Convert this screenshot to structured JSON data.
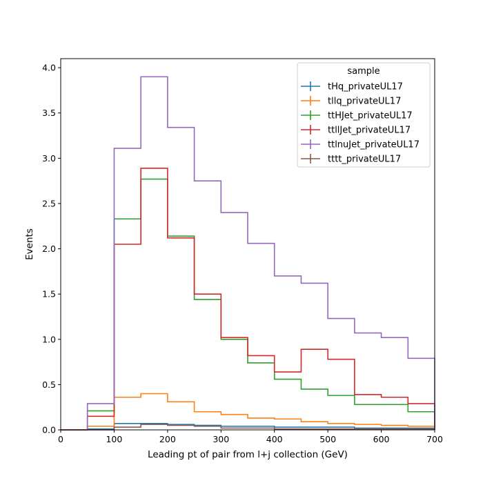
{
  "chart_data": {
    "type": "line",
    "style": "step histogram",
    "xlabel": "Leading pt of pair from l+j collection (GeV)",
    "ylabel": "Events",
    "xlim": [
      0,
      700
    ],
    "ylim": [
      0,
      4.1
    ],
    "x_ticks": [
      "0",
      "100",
      "200",
      "300",
      "400",
      "500",
      "600",
      "700"
    ],
    "y_ticks": [
      "0.0",
      "0.5",
      "1.0",
      "1.5",
      "2.0",
      "2.5",
      "3.0",
      "3.5",
      "4.0"
    ],
    "grid": false,
    "legend_title": "sample",
    "legend_position": "top-right",
    "bin_edges": [
      0,
      50,
      100,
      150,
      200,
      250,
      300,
      350,
      400,
      450,
      500,
      550,
      600,
      650,
      700
    ],
    "series": [
      {
        "name": "tHq_privateUL17",
        "color": "#1f77b4",
        "values": [
          0,
          0.01,
          0.07,
          0.07,
          0.06,
          0.05,
          0.04,
          0.04,
          0.03,
          0.03,
          0.03,
          0.02,
          0.02,
          0.02
        ]
      },
      {
        "name": "tllq_privateUL17",
        "color": "#ff7f0e",
        "values": [
          0,
          0.04,
          0.36,
          0.4,
          0.31,
          0.2,
          0.17,
          0.13,
          0.12,
          0.09,
          0.07,
          0.06,
          0.05,
          0.04
        ]
      },
      {
        "name": "ttHJet_privateUL17",
        "color": "#2ca02c",
        "values": [
          0,
          0.21,
          2.33,
          2.77,
          2.14,
          1.44,
          1.0,
          0.74,
          0.56,
          0.45,
          0.38,
          0.28,
          0.28,
          0.2
        ]
      },
      {
        "name": "ttllJet_privateUL17",
        "color": "#d62728",
        "values": [
          0,
          0.15,
          2.05,
          2.89,
          2.12,
          1.5,
          1.02,
          0.82,
          0.64,
          0.89,
          0.78,
          0.39,
          0.36,
          0.29
        ]
      },
      {
        "name": "ttlnuJet_privateUL17",
        "color": "#9467bd",
        "values": [
          0,
          0.29,
          3.11,
          3.9,
          3.34,
          2.75,
          2.4,
          2.06,
          1.7,
          1.62,
          1.23,
          1.07,
          1.02,
          0.79
        ]
      },
      {
        "name": "tttt_privateUL17",
        "color": "#8c564b",
        "values": [
          0,
          0.0,
          0.03,
          0.06,
          0.05,
          0.04,
          0.02,
          0.02,
          0.01,
          0.01,
          0.01,
          0.01,
          0.01,
          0.01
        ]
      }
    ]
  }
}
